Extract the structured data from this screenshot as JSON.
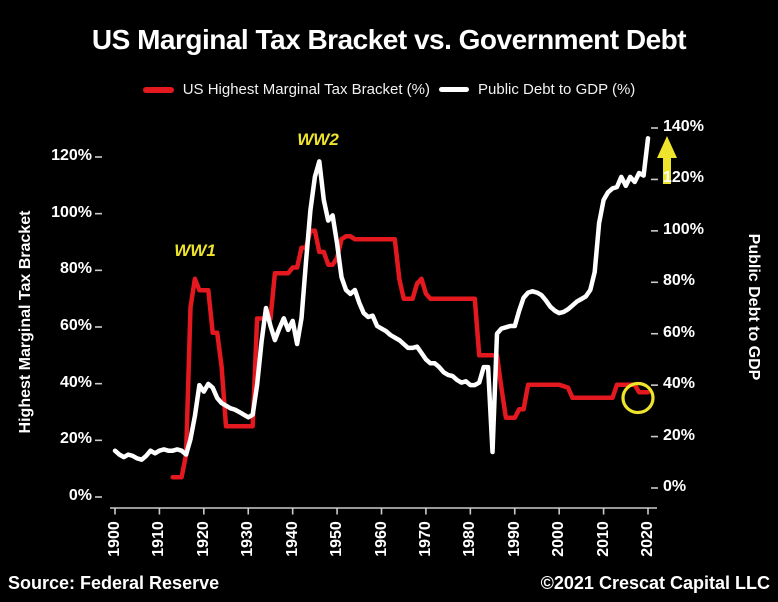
{
  "title": "US Marginal Tax Bracket vs. Government Debt",
  "legend": {
    "tax_label": "US Highest Marginal Tax Bracket (%)",
    "debt_label": "Public Debt to GDP (%)"
  },
  "footer": {
    "source": "Source: Federal Reserve",
    "copyright": "©2021 Crescat Capital LLC"
  },
  "annotations": {
    "ww1": "WW1",
    "ww2": "WW2"
  },
  "colors": {
    "background": "#000000",
    "tax_series": "#e4191f",
    "debt_series": "#ffffff",
    "annotation_yellow": "#efe42c",
    "axis": "#cccccc",
    "text": "#ffffff"
  },
  "chart_data": {
    "type": "line",
    "title": "US Marginal Tax Bracket vs. Government Debt",
    "x_axis": {
      "ticks": [
        1900,
        1910,
        1920,
        1930,
        1940,
        1950,
        1960,
        1970,
        1980,
        1990,
        2000,
        2010,
        2020
      ]
    },
    "left_axis": {
      "title": "Highest Marginal Tax Bracket",
      "unit": "%",
      "ticks": [
        0,
        20,
        40,
        60,
        80,
        100,
        120
      ],
      "range": [
        0,
        130
      ]
    },
    "right_axis": {
      "title": "Public Debt to GDP",
      "unit": "%",
      "ticks": [
        0,
        20,
        40,
        60,
        80,
        100,
        120,
        140
      ],
      "range": [
        0,
        140
      ]
    },
    "grid": false,
    "legend_position": "top-center",
    "series": [
      {
        "name": "US Highest Marginal Tax Bracket (%)",
        "axis": "left",
        "color": "#e4191f",
        "points": [
          [
            1913,
            7
          ],
          [
            1914,
            7
          ],
          [
            1915,
            7
          ],
          [
            1916,
            15
          ],
          [
            1917,
            67
          ],
          [
            1918,
            77
          ],
          [
            1919,
            73
          ],
          [
            1920,
            73
          ],
          [
            1921,
            73
          ],
          [
            1922,
            58
          ],
          [
            1923,
            58
          ],
          [
            1924,
            46
          ],
          [
            1925,
            25
          ],
          [
            1926,
            25
          ],
          [
            1927,
            25
          ],
          [
            1928,
            25
          ],
          [
            1929,
            25
          ],
          [
            1930,
            25
          ],
          [
            1931,
            25
          ],
          [
            1932,
            63
          ],
          [
            1933,
            63
          ],
          [
            1934,
            63
          ],
          [
            1935,
            63
          ],
          [
            1936,
            79
          ],
          [
            1937,
            79
          ],
          [
            1938,
            79
          ],
          [
            1939,
            79
          ],
          [
            1940,
            81
          ],
          [
            1941,
            81
          ],
          [
            1942,
            88
          ],
          [
            1943,
            88
          ],
          [
            1944,
            94
          ],
          [
            1945,
            94
          ],
          [
            1946,
            86.5
          ],
          [
            1947,
            86.5
          ],
          [
            1948,
            82
          ],
          [
            1949,
            82
          ],
          [
            1950,
            84.4
          ],
          [
            1951,
            91
          ],
          [
            1952,
            92
          ],
          [
            1953,
            92
          ],
          [
            1954,
            91
          ],
          [
            1955,
            91
          ],
          [
            1956,
            91
          ],
          [
            1957,
            91
          ],
          [
            1958,
            91
          ],
          [
            1959,
            91
          ],
          [
            1960,
            91
          ],
          [
            1961,
            91
          ],
          [
            1962,
            91
          ],
          [
            1963,
            91
          ],
          [
            1964,
            77
          ],
          [
            1965,
            70
          ],
          [
            1966,
            70
          ],
          [
            1967,
            70
          ],
          [
            1968,
            75.3
          ],
          [
            1969,
            77
          ],
          [
            1970,
            71.8
          ],
          [
            1971,
            70
          ],
          [
            1972,
            70
          ],
          [
            1973,
            70
          ],
          [
            1974,
            70
          ],
          [
            1975,
            70
          ],
          [
            1976,
            70
          ],
          [
            1977,
            70
          ],
          [
            1978,
            70
          ],
          [
            1979,
            70
          ],
          [
            1980,
            70
          ],
          [
            1981,
            70
          ],
          [
            1982,
            50
          ],
          [
            1983,
            50
          ],
          [
            1984,
            50
          ],
          [
            1985,
            50
          ],
          [
            1986,
            50
          ],
          [
            1987,
            38.5
          ],
          [
            1988,
            28
          ],
          [
            1989,
            28
          ],
          [
            1990,
            28
          ],
          [
            1991,
            31
          ],
          [
            1992,
            31
          ],
          [
            1993,
            39.6
          ],
          [
            1994,
            39.6
          ],
          [
            1995,
            39.6
          ],
          [
            1996,
            39.6
          ],
          [
            1997,
            39.6
          ],
          [
            1998,
            39.6
          ],
          [
            1999,
            39.6
          ],
          [
            2000,
            39.6
          ],
          [
            2001,
            39.1
          ],
          [
            2002,
            38.6
          ],
          [
            2003,
            35
          ],
          [
            2004,
            35
          ],
          [
            2005,
            35
          ],
          [
            2006,
            35
          ],
          [
            2007,
            35
          ],
          [
            2008,
            35
          ],
          [
            2009,
            35
          ],
          [
            2010,
            35
          ],
          [
            2011,
            35
          ],
          [
            2012,
            35
          ],
          [
            2013,
            39.6
          ],
          [
            2014,
            39.6
          ],
          [
            2015,
            39.6
          ],
          [
            2016,
            39.6
          ],
          [
            2017,
            39.6
          ],
          [
            2018,
            37
          ],
          [
            2019,
            37
          ],
          [
            2020,
            37
          ]
        ]
      },
      {
        "name": "Public Debt to GDP (%)",
        "axis": "right",
        "color": "#ffffff",
        "points": [
          [
            1900,
            14.5
          ],
          [
            1901,
            13
          ],
          [
            1902,
            12
          ],
          [
            1903,
            13
          ],
          [
            1904,
            12.5
          ],
          [
            1905,
            11.5
          ],
          [
            1906,
            11
          ],
          [
            1907,
            12.5
          ],
          [
            1908,
            14.5
          ],
          [
            1909,
            13.5
          ],
          [
            1910,
            14.5
          ],
          [
            1911,
            15
          ],
          [
            1912,
            14.5
          ],
          [
            1913,
            14.5
          ],
          [
            1914,
            15
          ],
          [
            1915,
            14.5
          ],
          [
            1916,
            13
          ],
          [
            1917,
            19
          ],
          [
            1918,
            28
          ],
          [
            1919,
            40
          ],
          [
            1920,
            37.5
          ],
          [
            1921,
            40.5
          ],
          [
            1922,
            39
          ],
          [
            1923,
            35
          ],
          [
            1924,
            33
          ],
          [
            1925,
            32
          ],
          [
            1926,
            31
          ],
          [
            1927,
            30.5
          ],
          [
            1928,
            29.5
          ],
          [
            1929,
            28.5
          ],
          [
            1930,
            27.5
          ],
          [
            1931,
            28.5
          ],
          [
            1932,
            40
          ],
          [
            1933,
            57
          ],
          [
            1934,
            70
          ],
          [
            1935,
            63
          ],
          [
            1936,
            57.5
          ],
          [
            1937,
            62
          ],
          [
            1938,
            66
          ],
          [
            1939,
            61.5
          ],
          [
            1940,
            65
          ],
          [
            1941,
            56
          ],
          [
            1942,
            66
          ],
          [
            1943,
            88
          ],
          [
            1944,
            108
          ],
          [
            1945,
            121
          ],
          [
            1946,
            127
          ],
          [
            1947,
            112
          ],
          [
            1948,
            104
          ],
          [
            1949,
            106
          ],
          [
            1950,
            95
          ],
          [
            1951,
            82
          ],
          [
            1952,
            77
          ],
          [
            1953,
            75.5
          ],
          [
            1954,
            77
          ],
          [
            1955,
            72
          ],
          [
            1956,
            68
          ],
          [
            1957,
            66.5
          ],
          [
            1958,
            67
          ],
          [
            1959,
            63
          ],
          [
            1960,
            62
          ],
          [
            1961,
            61
          ],
          [
            1962,
            59.5
          ],
          [
            1963,
            58.5
          ],
          [
            1964,
            57.5
          ],
          [
            1965,
            56
          ],
          [
            1966,
            54.5
          ],
          [
            1967,
            54.5
          ],
          [
            1968,
            55
          ],
          [
            1969,
            52.5
          ],
          [
            1970,
            50
          ],
          [
            1971,
            48.5
          ],
          [
            1972,
            48.5
          ],
          [
            1973,
            47
          ],
          [
            1974,
            45
          ],
          [
            1975,
            44
          ],
          [
            1976,
            43.5
          ],
          [
            1977,
            42
          ],
          [
            1978,
            41
          ],
          [
            1979,
            41.5
          ],
          [
            1980,
            40
          ],
          [
            1981,
            40
          ],
          [
            1982,
            41
          ],
          [
            1983,
            47
          ],
          [
            1984,
            47
          ],
          [
            1985,
            14
          ],
          [
            1986,
            60
          ],
          [
            1987,
            62
          ],
          [
            1988,
            62.5
          ],
          [
            1989,
            63
          ],
          [
            1990,
            63
          ],
          [
            1991,
            69
          ],
          [
            1992,
            74
          ],
          [
            1993,
            76
          ],
          [
            1994,
            76.5
          ],
          [
            1995,
            76
          ],
          [
            1996,
            75
          ],
          [
            1997,
            73
          ],
          [
            1998,
            70.5
          ],
          [
            1999,
            69
          ],
          [
            2000,
            68
          ],
          [
            2001,
            68.5
          ],
          [
            2002,
            69.5
          ],
          [
            2003,
            71
          ],
          [
            2004,
            72.5
          ],
          [
            2005,
            73.5
          ],
          [
            2006,
            74.5
          ],
          [
            2007,
            77
          ],
          [
            2008,
            84
          ],
          [
            2009,
            103
          ],
          [
            2010,
            112
          ],
          [
            2011,
            115
          ],
          [
            2012,
            116.5
          ],
          [
            2013,
            117
          ],
          [
            2014,
            121
          ],
          [
            2015,
            117.5
          ],
          [
            2016,
            121
          ],
          [
            2017,
            119
          ],
          [
            2018,
            122.5
          ],
          [
            2019,
            121.5
          ],
          [
            2020,
            136
          ]
        ]
      }
    ],
    "markers": [
      {
        "type": "circle",
        "meaning": "highlight current tax bracket",
        "color": "#efe42c"
      },
      {
        "type": "arrow-up",
        "meaning": "debt rising",
        "color": "#efe42c"
      }
    ]
  }
}
